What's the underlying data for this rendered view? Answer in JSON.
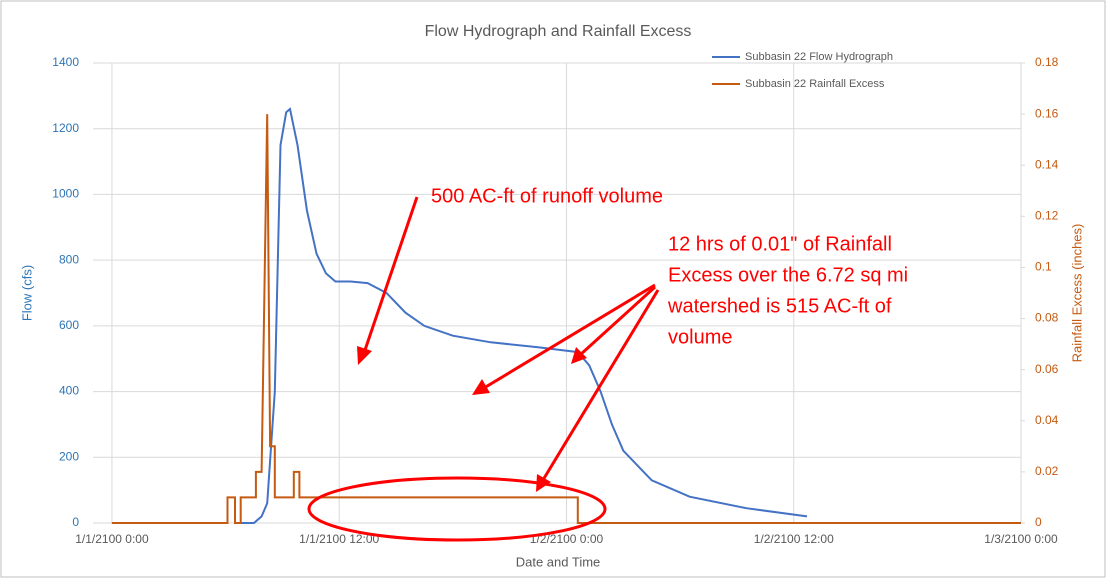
{
  "chart_data": {
    "type": "line",
    "title": "Flow Hydrograph and Rainfall Excess",
    "xlabel": "Date and Time",
    "ylabel": "Flow (cfs)",
    "y2label": "Rainfall Excess (inches)",
    "xlim": [
      -1,
      48
    ],
    "xticks": [
      {
        "value": 0,
        "label": "1/1/2100 0:00"
      },
      {
        "value": 12,
        "label": "1/1/2100 12:00"
      },
      {
        "value": 24,
        "label": "1/2/2100 0:00"
      },
      {
        "value": 36,
        "label": "1/2/2100 12:00"
      },
      {
        "value": 48,
        "label": "1/3/2100 0:00"
      }
    ],
    "ylim": [
      0,
      1400
    ],
    "yticks": [
      0,
      200,
      400,
      600,
      800,
      1000,
      1200,
      1400
    ],
    "y2lim": [
      0,
      0.18
    ],
    "y2ticks": [
      0,
      0.02,
      0.04,
      0.06,
      0.08,
      0.1,
      0.12,
      0.14,
      0.16,
      0.18
    ],
    "grid": true,
    "legend": "top-right",
    "series": [
      {
        "name": "Subbasin 22 Flow Hydrograph",
        "color": "#4472c4",
        "x": [
          6.6,
          7.5,
          7.9,
          8.2,
          8.6,
          8.9,
          9.2,
          9.4,
          9.8,
          10.3,
          10.8,
          11.3,
          11.8,
          12.6,
          13.5,
          14.5,
          15.5,
          16.5,
          18.0,
          20.0,
          22.5,
          24.6,
          25.2,
          25.8,
          26.4,
          27.0,
          28.5,
          30.5,
          33.5,
          36.7
        ],
        "values": [
          0,
          0,
          20,
          60,
          400,
          1150,
          1250,
          1260,
          1150,
          950,
          820,
          760,
          735,
          735,
          730,
          700,
          640,
          600,
          570,
          550,
          535,
          520,
          480,
          400,
          300,
          220,
          130,
          80,
          45,
          20
        ]
      },
      {
        "name": "Subbasin 22 Rainfall Excess",
        "color": "#c55a11",
        "axis": "y2",
        "x": [
          0,
          6.1,
          6.1,
          6.5,
          6.5,
          6.8,
          6.8,
          7.6,
          7.6,
          7.9,
          8.2,
          8.35,
          8.6,
          8.6,
          9.6,
          9.6,
          9.9,
          9.9,
          24.6,
          24.6,
          48
        ],
        "values": [
          0,
          0,
          0.01,
          0.01,
          0,
          0,
          0.01,
          0.01,
          0.02,
          0.02,
          0.16,
          0.03,
          0.03,
          0.01,
          0.01,
          0.02,
          0.02,
          0.01,
          0.01,
          0,
          0
        ]
      }
    ],
    "annotations": [
      {
        "lines": [
          "500 AC-ft of runoff volume"
        ]
      },
      {
        "lines": [
          "12 hrs of 0.01\" of Rainfall",
          "Excess over the 6.72 sq mi",
          "watershed is 515 AC-ft of",
          "volume"
        ]
      }
    ]
  }
}
